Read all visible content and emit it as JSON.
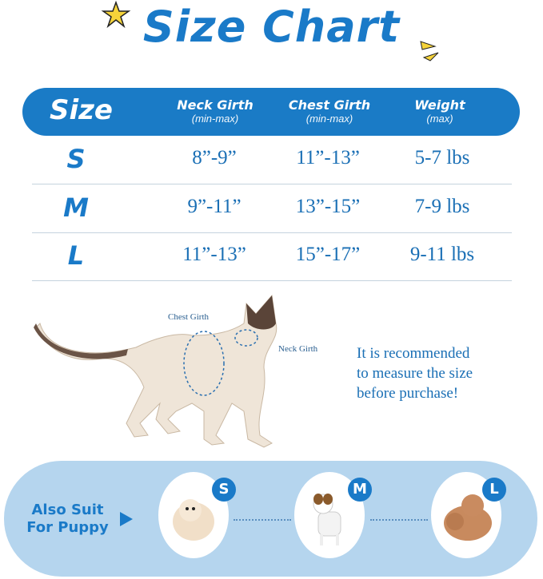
{
  "title": "Size Chart",
  "header": {
    "size": "Size",
    "columns": [
      {
        "main": "Neck Girth",
        "sub": "(min-max)"
      },
      {
        "main": "Chest Girth",
        "sub": "(min-max)"
      },
      {
        "main": "Weight",
        "sub": "(max)"
      }
    ]
  },
  "rows": [
    {
      "size": "S",
      "neck": "8”-9”",
      "chest": "11”-13”",
      "weight": "5-7 lbs"
    },
    {
      "size": "M",
      "neck": "9”-11”",
      "chest": "13”-15”",
      "weight": "7-9 lbs"
    },
    {
      "size": "L",
      "neck": "11”-13”",
      "chest": "15”-17”",
      "weight": "9-11 lbs"
    }
  ],
  "cat": {
    "chest_label": "Chest Girth",
    "neck_label": "Neck Girth"
  },
  "recommendation": [
    "It is recommended",
    "to measure the size",
    "before purchase!"
  ],
  "puppy": {
    "label_line1": "Also Suit",
    "label_line2": "For Puppy",
    "badges": [
      "S",
      "M",
      "L"
    ]
  },
  "colors": {
    "primary": "#1a7bc6",
    "pill": "#b5d5ee",
    "star": "#f5d33a"
  }
}
